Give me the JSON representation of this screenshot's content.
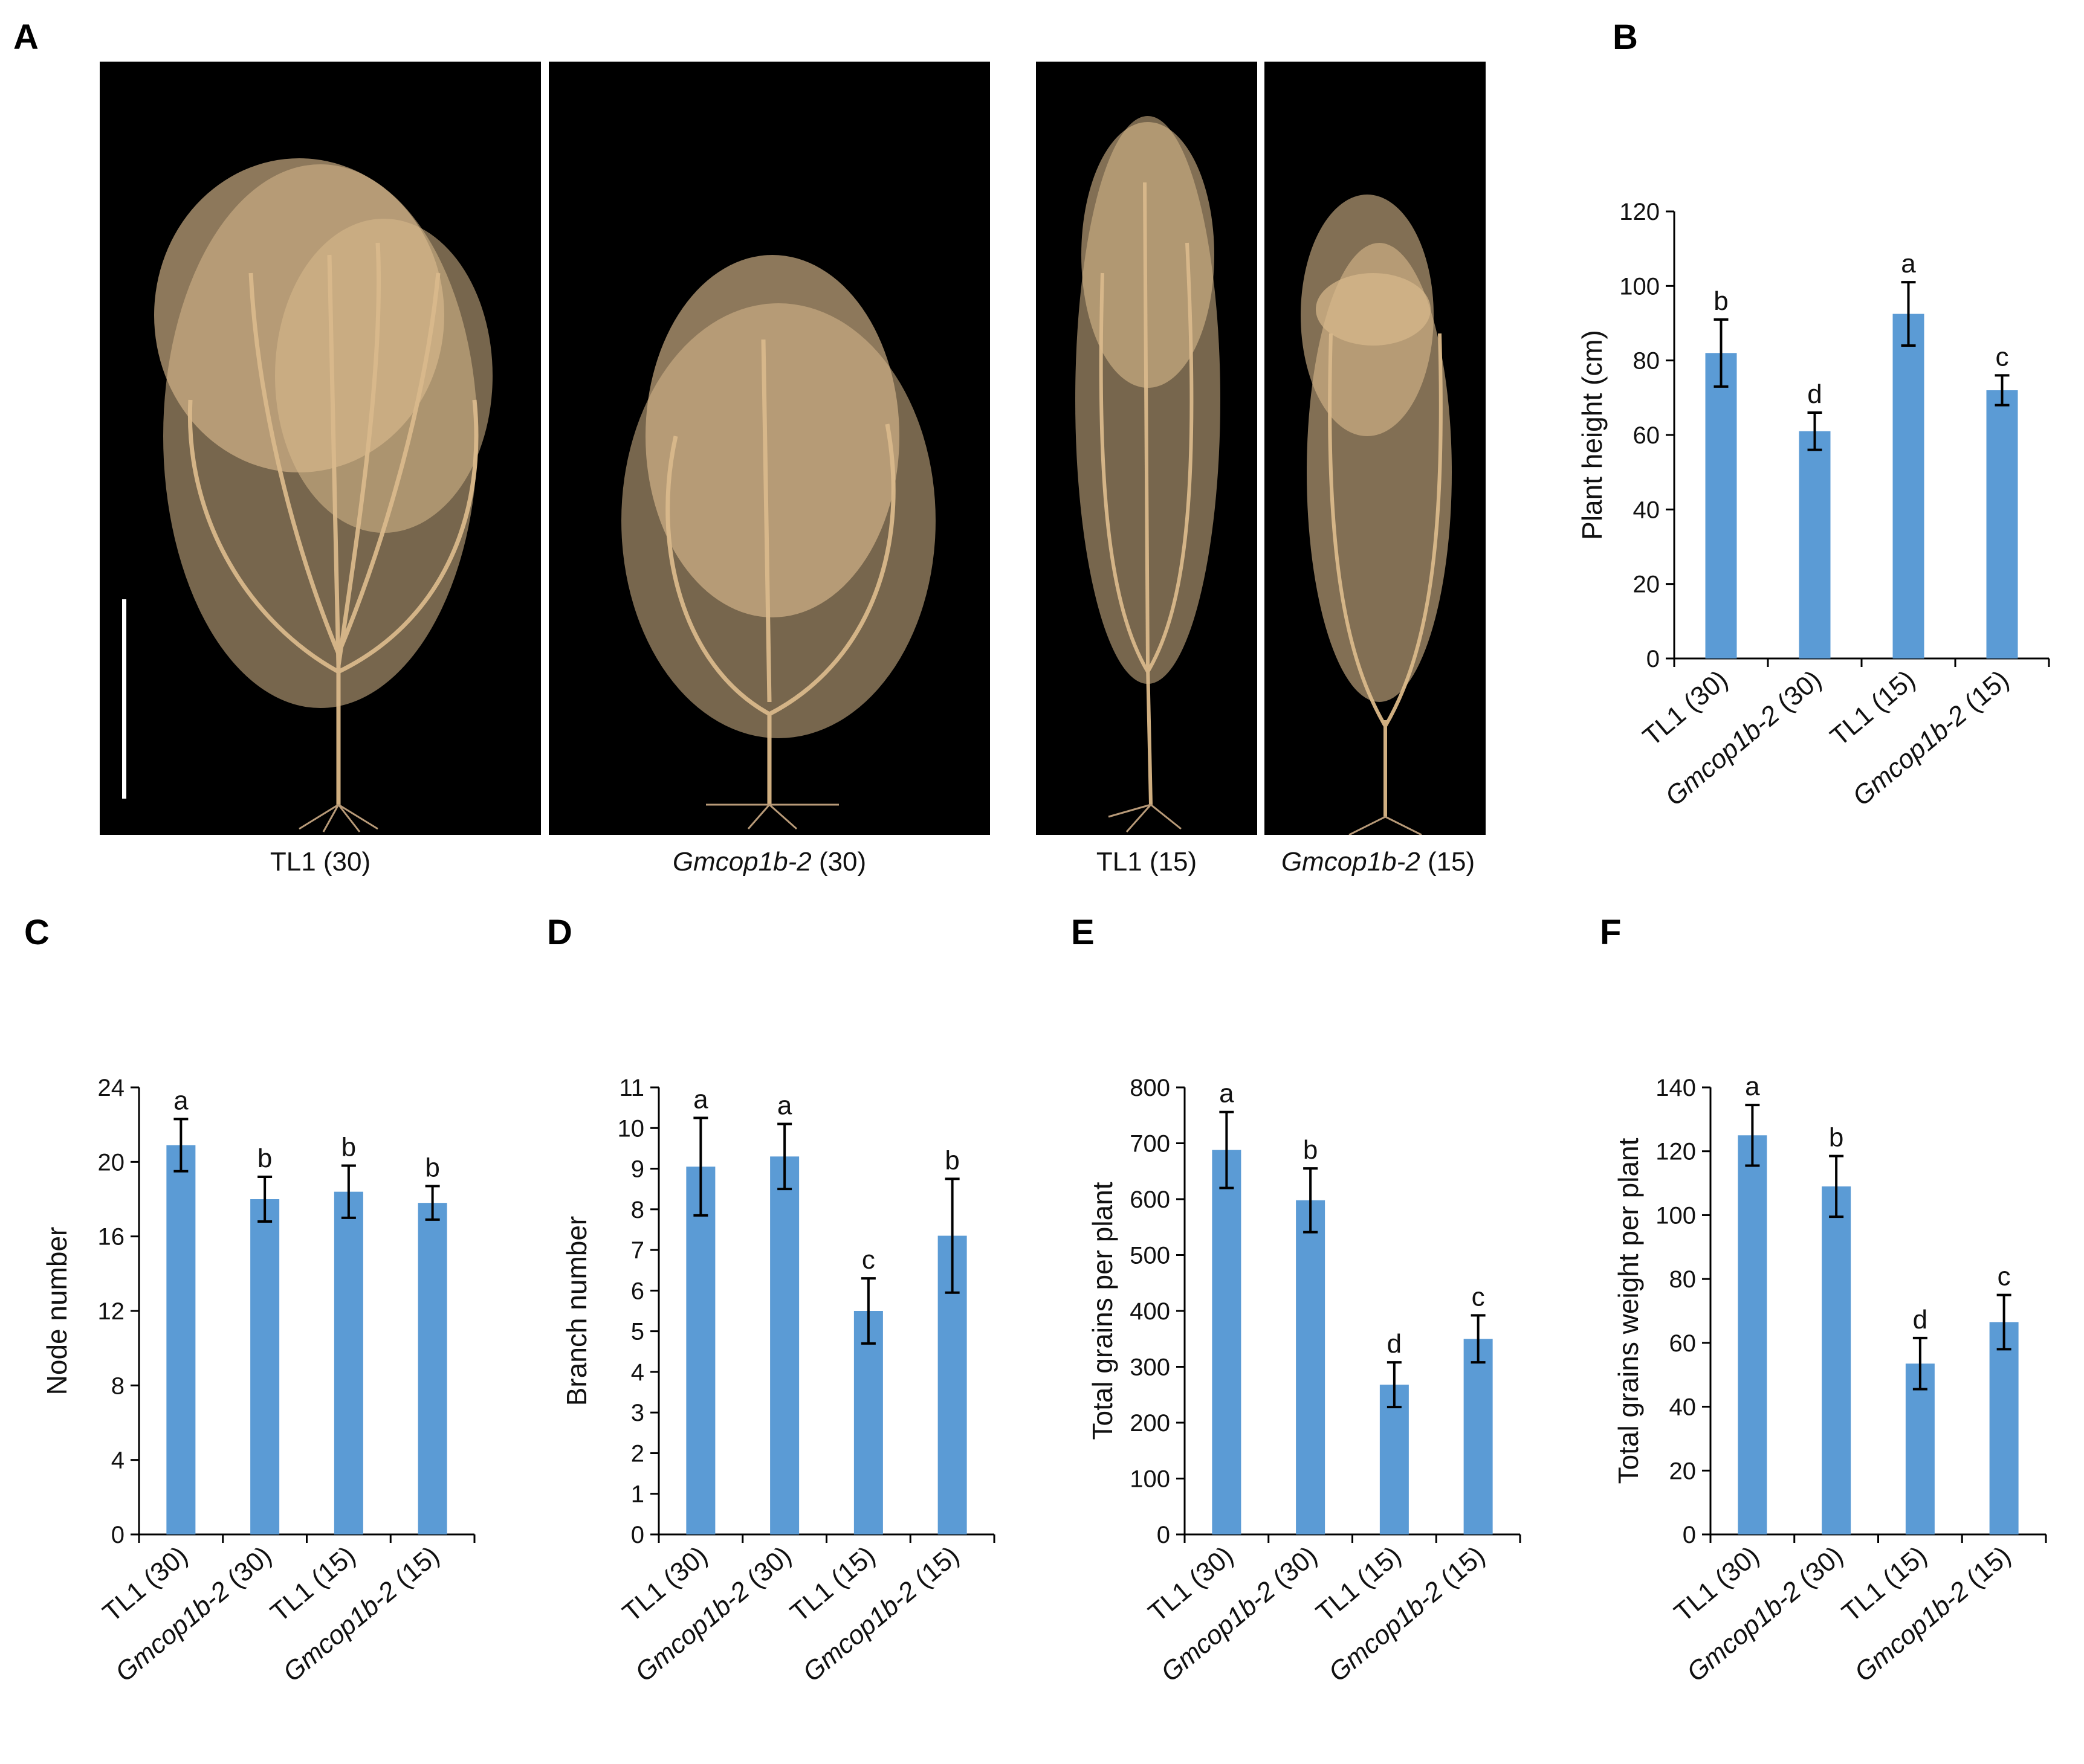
{
  "panels": {
    "A": "A",
    "B": "B",
    "C": "C",
    "D": "D",
    "E": "E",
    "F": "F"
  },
  "photos": [
    {
      "genotype": "TL1",
      "density": "(30)",
      "italic": false
    },
    {
      "genotype": "Gmcop1b-2",
      "density": "(30)",
      "italic": true
    },
    {
      "genotype": "TL1",
      "density": "(15)",
      "italic": false
    },
    {
      "genotype": "Gmcop1b-2",
      "density": "(15)",
      "italic": true
    }
  ],
  "colors": {
    "bar": "#5B9BD5",
    "axis": "#000000",
    "photo_bg": "#000000",
    "plant": "#d9b98c"
  },
  "chart_data": [
    {
      "panel": "B",
      "type": "bar",
      "categories": [
        "TL1 (30)",
        "Gmcop1b-2 (30)",
        "TL1 (15)",
        "Gmcop1b-2 (15)"
      ],
      "values": [
        82,
        61,
        92.5,
        72
      ],
      "errors": [
        9,
        5,
        8.5,
        4
      ],
      "letters": [
        "b",
        "d",
        "a",
        "c"
      ],
      "ylabel": "Plant height (cm)",
      "ylim": [
        0,
        120
      ],
      "yticks": [
        0,
        20,
        40,
        60,
        80,
        100,
        120
      ]
    },
    {
      "panel": "C",
      "type": "bar",
      "categories": [
        "TL1 (30)",
        "Gmcop1b-2 (30)",
        "TL1 (15)",
        "Gmcop1b-2 (15)"
      ],
      "values": [
        20.9,
        18.0,
        18.4,
        17.8
      ],
      "errors": [
        1.4,
        1.2,
        1.4,
        0.9
      ],
      "letters": [
        "a",
        "b",
        "b",
        "b"
      ],
      "ylabel": "Node number",
      "ylim": [
        0,
        24
      ],
      "yticks": [
        0,
        4,
        8,
        12,
        16,
        20,
        24
      ]
    },
    {
      "panel": "D",
      "type": "bar",
      "categories": [
        "TL1 (30)",
        "Gmcop1b-2 (30)",
        "TL1 (15)",
        "Gmcop1b-2 (15)"
      ],
      "values": [
        9.05,
        9.3,
        5.5,
        7.35
      ],
      "errors": [
        1.2,
        0.8,
        0.8,
        1.4
      ],
      "letters": [
        "a",
        "a",
        "c",
        "b"
      ],
      "ylabel": "Branch number",
      "ylim": [
        0,
        11
      ],
      "yticks": [
        0,
        1,
        2,
        3,
        4,
        5,
        6,
        7,
        8,
        9,
        10,
        11
      ]
    },
    {
      "panel": "E",
      "type": "bar",
      "categories": [
        "TL1 (30)",
        "Gmcop1b-2 (30)",
        "TL1 (15)",
        "Gmcop1b-2 (15)"
      ],
      "values": [
        688,
        598,
        268,
        350
      ],
      "errors": [
        68,
        57,
        40,
        42
      ],
      "letters": [
        "a",
        "b",
        "d",
        "c"
      ],
      "ylabel": "Total grains per plant",
      "ylim": [
        0,
        800
      ],
      "yticks": [
        0,
        100,
        200,
        300,
        400,
        500,
        600,
        700,
        800
      ]
    },
    {
      "panel": "F",
      "type": "bar",
      "categories": [
        "TL1 (30)",
        "Gmcop1b-2 (30)",
        "TL1 (15)",
        "Gmcop1b-2 (15)"
      ],
      "values": [
        125,
        109,
        53.5,
        66.5
      ],
      "errors": [
        9.5,
        9.5,
        8,
        8.5
      ],
      "letters": [
        "a",
        "b",
        "d",
        "c"
      ],
      "ylabel": "Total grains weight per plant",
      "ylim": [
        0,
        140
      ],
      "yticks": [
        0,
        20,
        40,
        60,
        80,
        100,
        120,
        140
      ]
    }
  ]
}
